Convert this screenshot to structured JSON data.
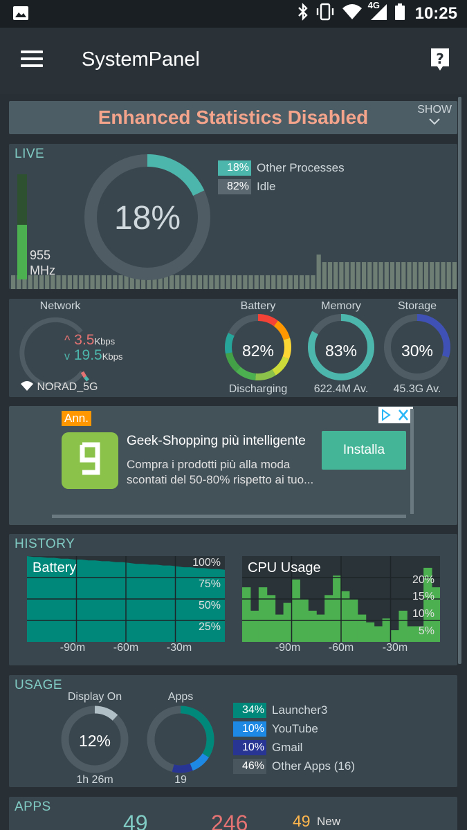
{
  "status_bar": {
    "time": "10:25",
    "network_type": "4G",
    "icons": [
      "image-icon",
      "bluetooth-icon",
      "vibrate-icon",
      "wifi-icon",
      "signal-icon",
      "battery-icon"
    ]
  },
  "app_bar": {
    "title": "SystemPanel",
    "icons": [
      "menu-icon",
      "help-icon"
    ]
  },
  "banner": {
    "text": "Enhanced Statistics Disabled",
    "show_label": "SHOW"
  },
  "live": {
    "label": "LIVE",
    "cpu_percent_text": "18%",
    "cpu_fraction": 0.18,
    "mhz_value": "955",
    "mhz_unit": "MHz",
    "mhz_fraction": 0.52,
    "legend": [
      {
        "value": "18%",
        "label": "Other Processes",
        "color": "#4db6ac"
      },
      {
        "value": "82%",
        "label": "Idle",
        "color": "#5b6870"
      }
    ],
    "freq_history": [
      0.4,
      0.4,
      0.4,
      0.4,
      0.4,
      0.4,
      0.4,
      0.4,
      0.4,
      0.4,
      0.4,
      0.4,
      0.4,
      0.4,
      0.4,
      0.4,
      0.4,
      0.4,
      0.4,
      0.4,
      0.4,
      0.4,
      0.4,
      0.4,
      0.4,
      0.4,
      0.4,
      0.4,
      0.4,
      0.4,
      0.4,
      0.4,
      0.4,
      0.4,
      0.4,
      0.4,
      0.4,
      0.4,
      0.4,
      0.4,
      0.4,
      0.4,
      0.4,
      0.4,
      0.4,
      0.4,
      0.4,
      0.4,
      0.4,
      0.4,
      0.4,
      0.4,
      0.4,
      0.4,
      1.0,
      0.78,
      0.78,
      0.78,
      0.78,
      0.78,
      0.78,
      0.78,
      0.78,
      0.78,
      0.78,
      0.78,
      0.78,
      0.78,
      0.78,
      0.78,
      0.78,
      0.78,
      0.78,
      0.78,
      0.78,
      0.78,
      0.78,
      0.78,
      0.78
    ]
  },
  "stats": {
    "network": {
      "label": "Network",
      "up_value": "3.5",
      "up_unit": "Kbps",
      "down_value": "19.5",
      "down_unit": "Kbps",
      "ssid": "NORAD_5G"
    },
    "battery": {
      "label": "Battery",
      "value": "82%",
      "fraction": 0.82,
      "sub": "Discharging"
    },
    "memory": {
      "label": "Memory",
      "value": "83%",
      "fraction": 0.83,
      "sub": "622.4M Av."
    },
    "storage": {
      "label": "Storage",
      "value": "30%",
      "fraction": 0.3,
      "sub": "45.3G Av."
    }
  },
  "ad": {
    "tag": "Ann.",
    "headline": "Geek-Shopping più intelligente",
    "description": "Compra i prodotti più alla moda scontati del 50-80% rispetto ai tuo...",
    "button": "Installa",
    "logo_icon": "wish-g-logo-icon"
  },
  "history": {
    "label": "HISTORY",
    "x_ticks": [
      "-90m",
      "-60m",
      "-30m"
    ]
  },
  "chart_data": [
    {
      "type": "area",
      "title": "Battery",
      "y_ticks": [
        "100%",
        "75%",
        "50%",
        "25%"
      ],
      "x_ticks": [
        "-90m",
        "-60m",
        "-30m"
      ],
      "ylim": [
        0,
        100
      ],
      "values": [
        100,
        99,
        99,
        98,
        98,
        97,
        97,
        96,
        96,
        95,
        95,
        94,
        94,
        93,
        93,
        92,
        91,
        91,
        90,
        90,
        89,
        89,
        88,
        87,
        87,
        86,
        86,
        85,
        85,
        84
      ],
      "color": "#00897b"
    },
    {
      "type": "bar",
      "title": "CPU Usage",
      "y_ticks": [
        "20%",
        "15%",
        "10%",
        "5%"
      ],
      "x_ticks": [
        "-90m",
        "-60m",
        "-30m"
      ],
      "ylim": [
        0,
        22
      ],
      "values": [
        14,
        8,
        14,
        12,
        7,
        10,
        16,
        11,
        8,
        7,
        12,
        17,
        13,
        11,
        7,
        5,
        4,
        6,
        3,
        8,
        4,
        4,
        19,
        14
      ],
      "color": "#4caf50"
    }
  ],
  "usage": {
    "label": "USAGE",
    "display_on": {
      "label": "Display On",
      "value": "12%",
      "fraction": 0.12,
      "sub": "1h 26m"
    },
    "apps": {
      "label": "Apps",
      "sub": "19"
    },
    "legend": [
      {
        "value": "34%",
        "label": "Launcher3",
        "color": "#00897b",
        "fraction": 0.34
      },
      {
        "value": "10%",
        "label": "YouTube",
        "color": "#1e88e5",
        "fraction": 0.1
      },
      {
        "value": "10%",
        "label": "Gmail",
        "color": "#283593",
        "fraction": 0.1
      },
      {
        "value": "46%",
        "label": "Other Apps (16)",
        "color": "#4a565d",
        "fraction": 0.46
      }
    ]
  },
  "apps": {
    "label": "APPS",
    "count_a": "49",
    "count_b": "246",
    "count_new": "49",
    "new_label": "New"
  }
}
